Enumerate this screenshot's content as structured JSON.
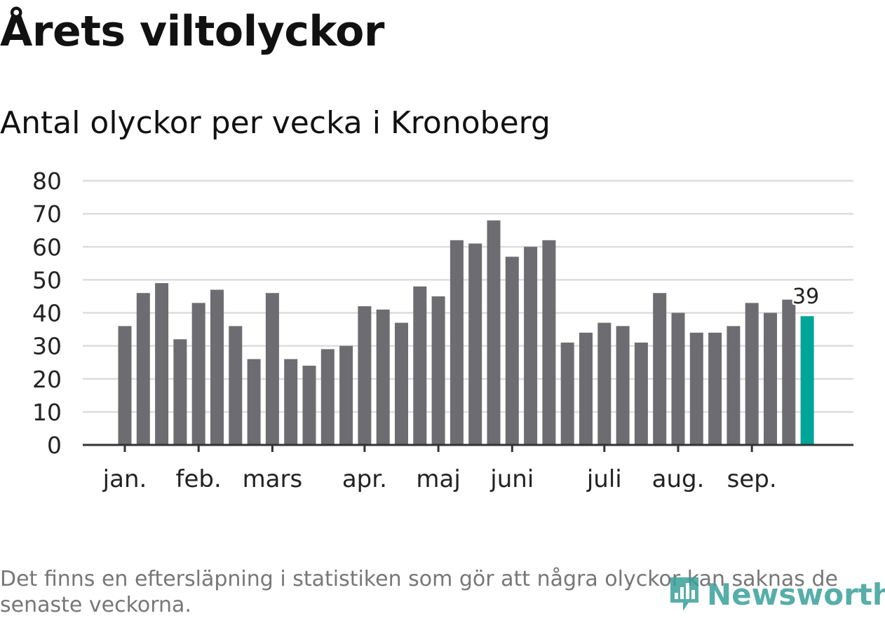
{
  "header": {
    "title": "Årets viltolyckor",
    "subtitle": "Antal olyckor per vecka i Kronoberg"
  },
  "footnote": "Det finns en eftersläpning i statistiken som gör att några olyckor kan saknas de senaste veckorna.",
  "logo": {
    "text": "Newsworthy",
    "icon": "newsworthy-logo-icon"
  },
  "colors": {
    "bar": "#6d6c71",
    "highlight": "#00a59a",
    "grid": "#dddddd",
    "axis": "#333333",
    "text": "#222222"
  },
  "chart_data": {
    "type": "bar",
    "title": "Årets viltolyckor",
    "subtitle": "Antal olyckor per vecka i Kronoberg",
    "xlabel": "",
    "ylabel": "",
    "ylim": [
      0,
      80
    ],
    "yticks": [
      0,
      10,
      20,
      30,
      40,
      50,
      60,
      70,
      80
    ],
    "grid": true,
    "values": [
      36,
      46,
      49,
      32,
      43,
      47,
      36,
      26,
      46,
      26,
      24,
      29,
      30,
      42,
      41,
      37,
      48,
      45,
      62,
      61,
      68,
      57,
      60,
      62,
      31,
      34,
      37,
      36,
      31,
      46,
      40,
      34,
      34,
      36,
      43,
      40,
      44,
      39
    ],
    "highlight_index": 37,
    "highlight_label": "39",
    "month_labels": [
      {
        "label": "jan.",
        "week_index": 0
      },
      {
        "label": "feb.",
        "week_index": 4
      },
      {
        "label": "mars",
        "week_index": 8
      },
      {
        "label": "apr.",
        "week_index": 13
      },
      {
        "label": "maj",
        "week_index": 17
      },
      {
        "label": "juni",
        "week_index": 21
      },
      {
        "label": "juli",
        "week_index": 26
      },
      {
        "label": "aug.",
        "week_index": 30
      },
      {
        "label": "sep.",
        "week_index": 34
      }
    ]
  }
}
